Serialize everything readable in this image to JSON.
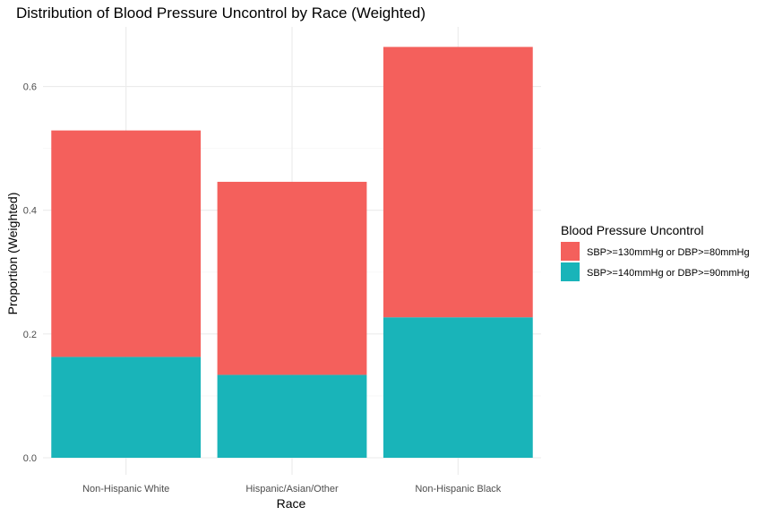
{
  "chart_data": {
    "type": "bar",
    "stacked": true,
    "title": "Distribution of Blood Pressure Uncontrol by Race (Weighted)",
    "xlabel": "Race",
    "ylabel": "Proportion (Weighted)",
    "categories": [
      "Non-Hispanic White",
      "Hispanic/Asian/Other",
      "Non-Hispanic Black"
    ],
    "ylim": [
      0,
      0.69
    ],
    "yticks": [
      0.0,
      0.2,
      0.4,
      0.6
    ],
    "ytick_labels": [
      "0.0",
      "0.2",
      "0.4",
      "0.6"
    ],
    "grid": true,
    "legend": {
      "title": "Blood Pressure Uncontrol",
      "placement": "right"
    },
    "series": [
      {
        "name": "SBP>=140mmHg or DBP>=90mmHg",
        "color": "#19B4B9",
        "values": [
          0.163,
          0.134,
          0.227
        ]
      },
      {
        "name": "SBP>=130mmHg or DBP>=80mmHg",
        "color": "#F4605C",
        "values": [
          0.366,
          0.312,
          0.437
        ]
      }
    ],
    "legend_order": [
      1,
      0
    ]
  }
}
